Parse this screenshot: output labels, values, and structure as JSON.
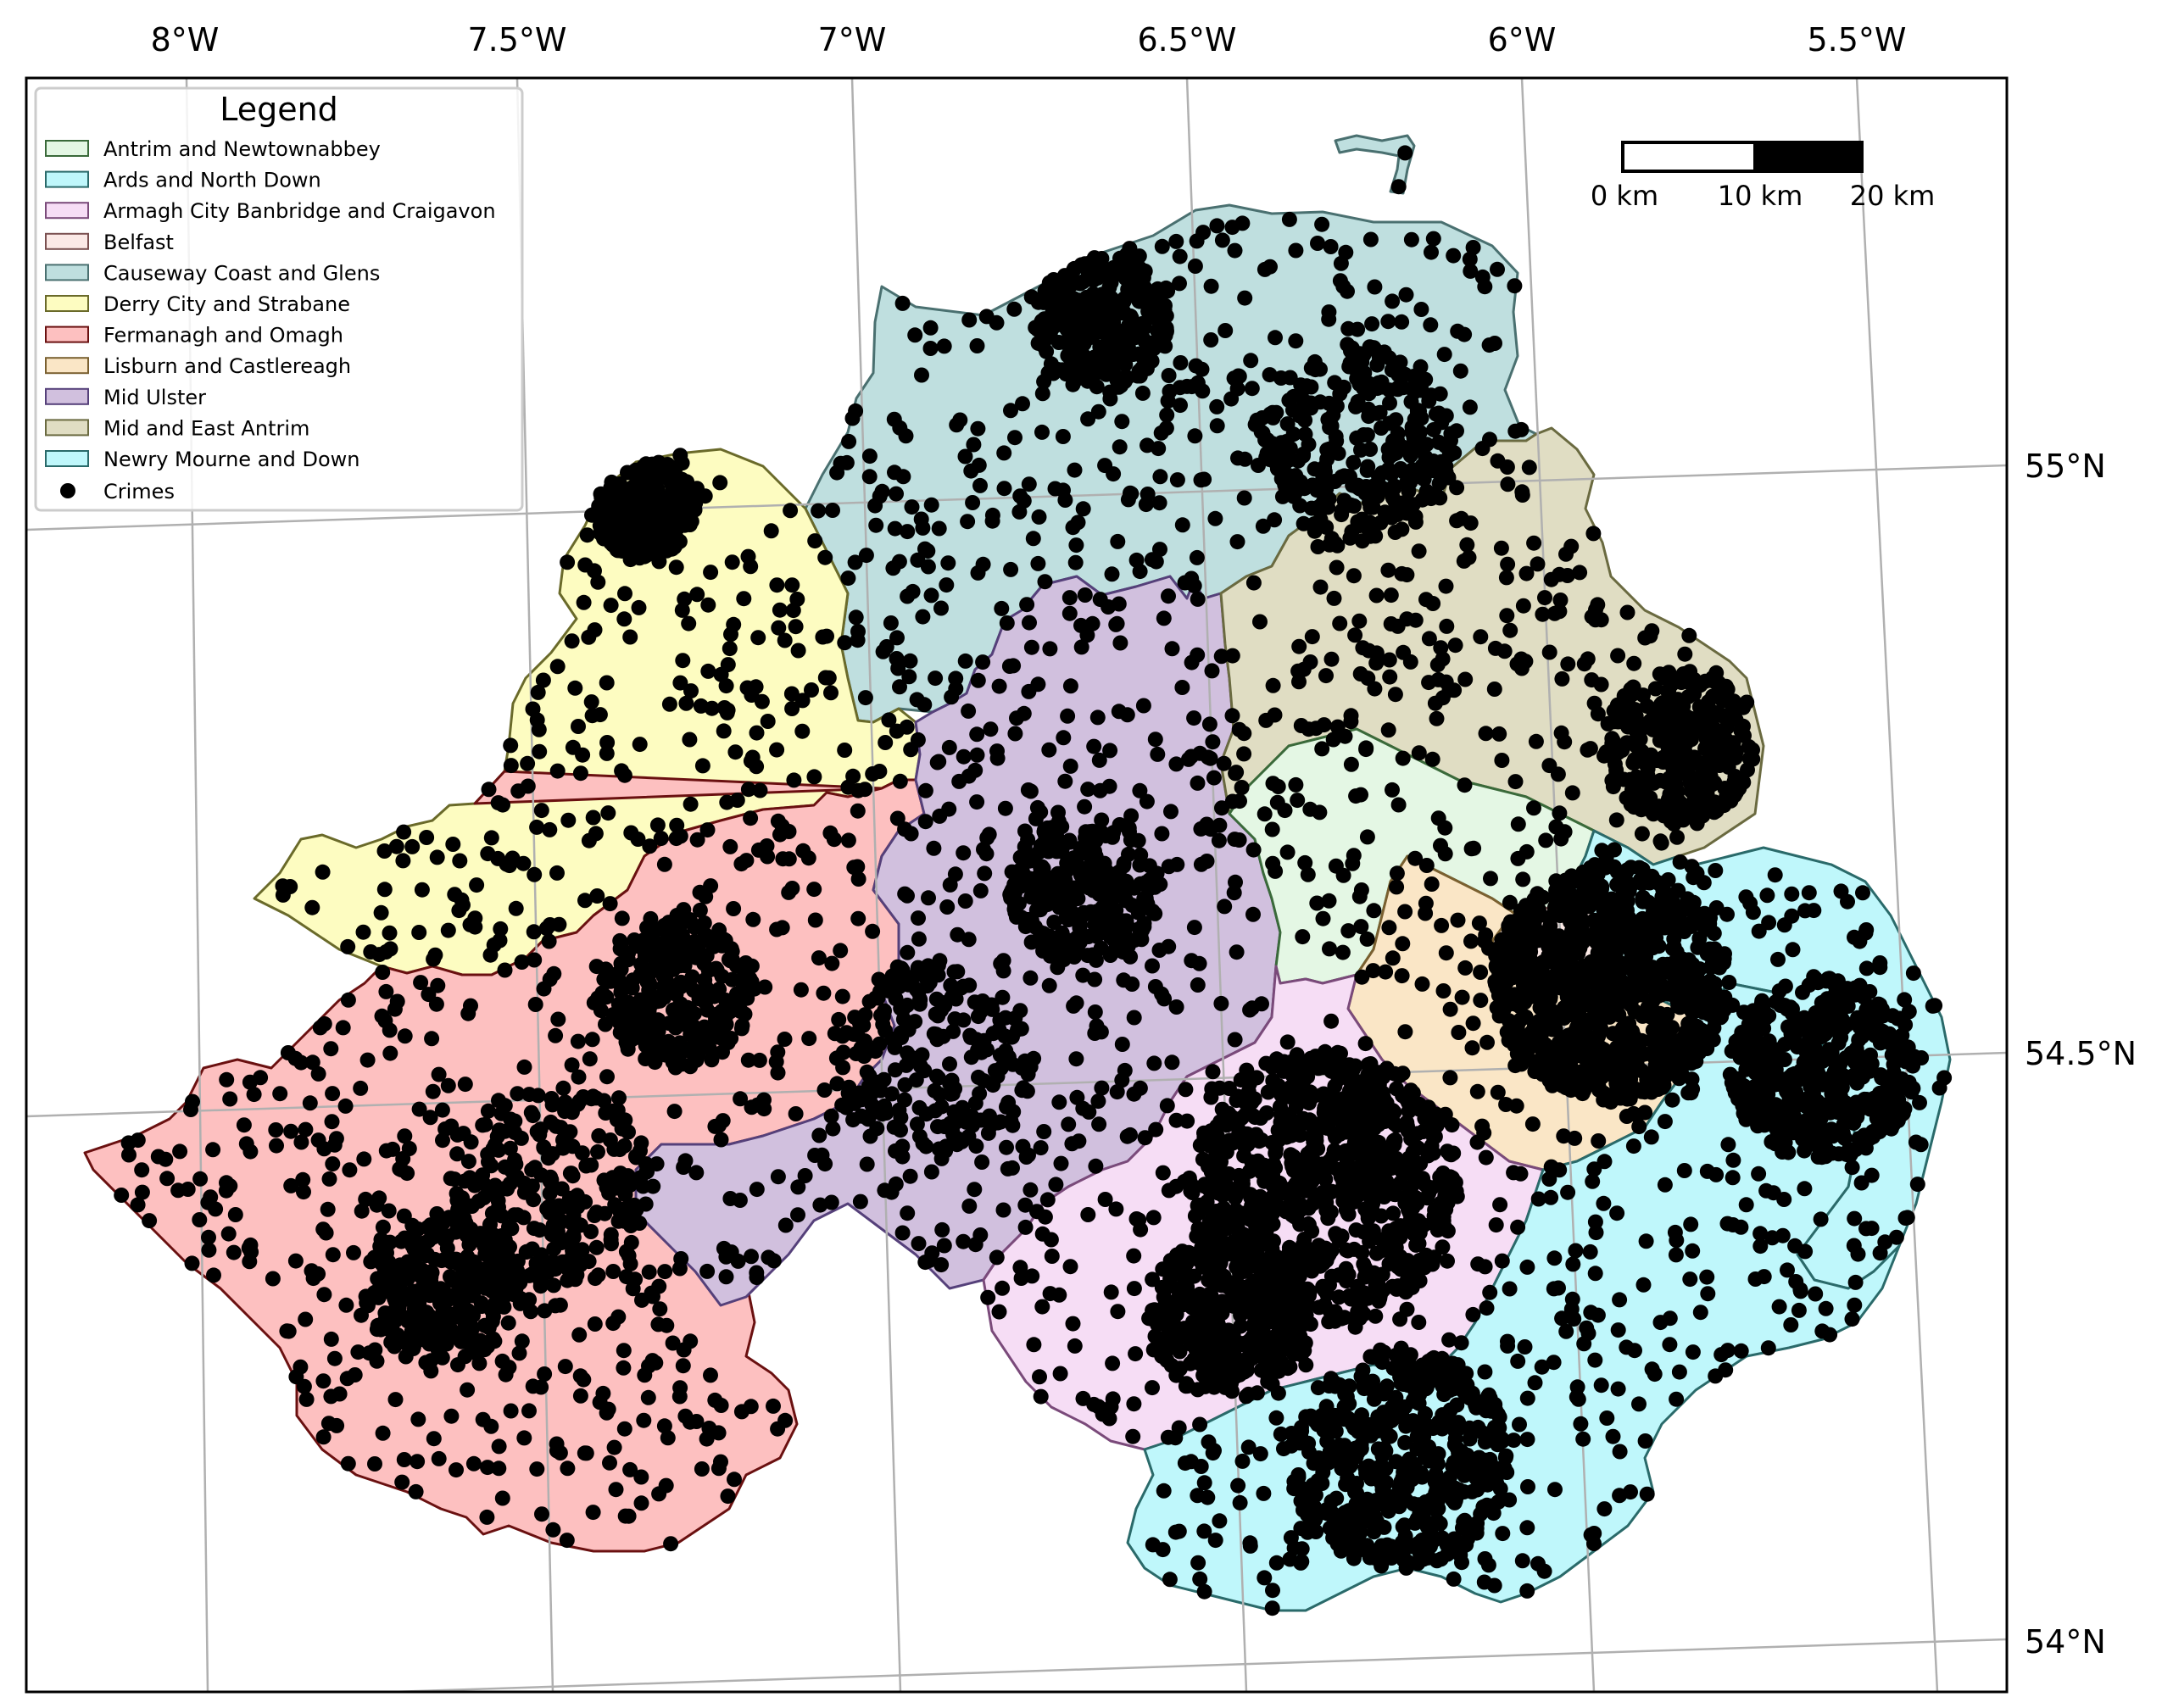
{
  "legend": {
    "title": "Legend",
    "items": [
      {
        "label": "Antrim and Newtownabbey",
        "color": "#e4f7e4"
      },
      {
        "label": "Ards and North Down",
        "color": "#bff7fb"
      },
      {
        "label": "Armagh City Banbridge and Craigavon",
        "color": "#f6ddf5"
      },
      {
        "label": "Belfast",
        "color": "#fbe9e6"
      },
      {
        "label": "Causeway Coast and Glens",
        "color": "#bfdfdf"
      },
      {
        "label": "Derry City and Strabane",
        "color": "#fdfcc1"
      },
      {
        "label": "Fermanagh and Omagh",
        "color": "#fdc0c0"
      },
      {
        "label": "Lisburn and Castlereagh",
        "color": "#fae6c6"
      },
      {
        "label": "Mid Ulster",
        "color": "#d1c0de"
      },
      {
        "label": "Mid and East Antrim",
        "color": "#e0ddc3"
      },
      {
        "label": "Newry Mourne and Down",
        "color": "#bff7fb"
      }
    ],
    "points_label": "Crimes",
    "points_color": "#000000"
  },
  "scale_bar": {
    "labels": [
      "0 km",
      "10 km",
      "20 km"
    ]
  },
  "axes": {
    "longitude_ticks": [
      "8°W",
      "7.5°W",
      "7°W",
      "6.5°W",
      "6°W",
      "5.5°W"
    ],
    "latitude_ticks": [
      "55°N",
      "54.5°N",
      "54°N"
    ]
  }
}
